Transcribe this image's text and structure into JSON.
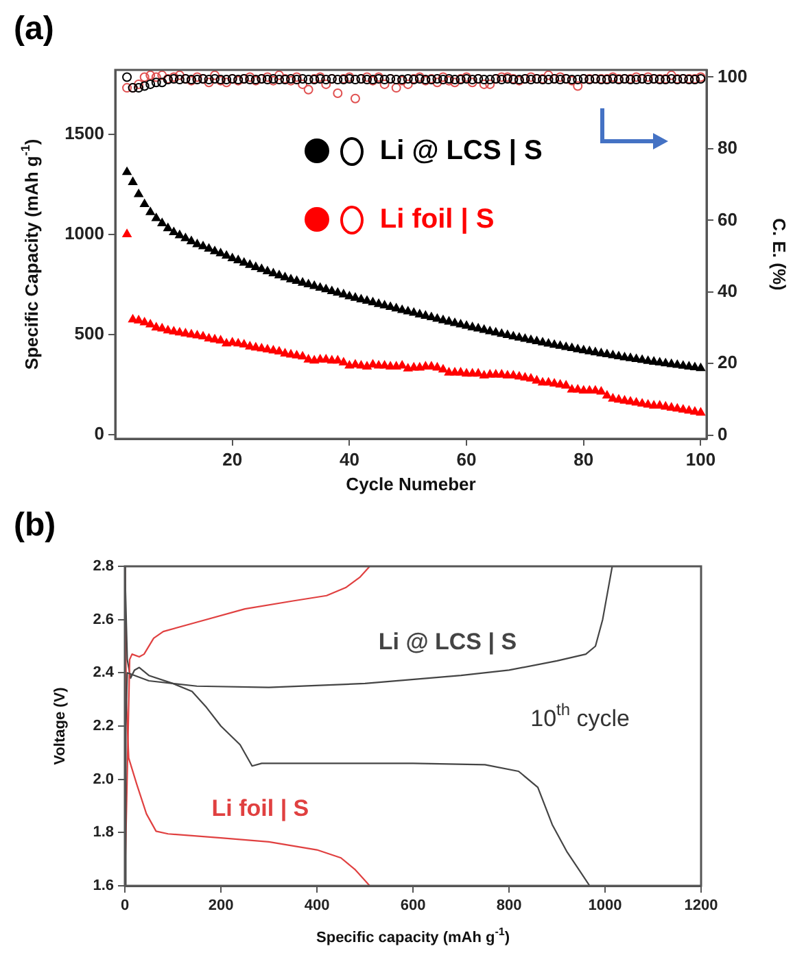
{
  "chart_data": [
    {
      "type": "scatter",
      "title": "(a)",
      "xlabel": "Cycle Numeber",
      "ylabel": "Specific Capacity (mAh g$^{-1}$)",
      "y2label": "C. E. (%)",
      "xlim": [
        0,
        101
      ],
      "xticks": [
        20,
        40,
        60,
        80,
        100
      ],
      "ylim": [
        -20,
        1820
      ],
      "yticks": [
        0,
        500,
        1000,
        1500
      ],
      "y2lim": [
        -1,
        102
      ],
      "y2ticks": [
        0,
        20,
        40,
        60,
        80,
        100
      ],
      "legend": "top right",
      "x": [
        2,
        3,
        4,
        5,
        6,
        7,
        8,
        9,
        10,
        11,
        12,
        13,
        14,
        15,
        16,
        17,
        18,
        19,
        20,
        21,
        22,
        23,
        24,
        25,
        26,
        27,
        28,
        29,
        30,
        31,
        32,
        33,
        34,
        35,
        36,
        37,
        38,
        39,
        40,
        41,
        42,
        43,
        44,
        45,
        46,
        47,
        48,
        49,
        50,
        51,
        52,
        53,
        54,
        55,
        56,
        57,
        58,
        59,
        60,
        61,
        62,
        63,
        64,
        65,
        66,
        67,
        68,
        69,
        70,
        71,
        72,
        73,
        74,
        75,
        76,
        77,
        78,
        79,
        80,
        81,
        82,
        83,
        84,
        85,
        86,
        87,
        88,
        89,
        90,
        91,
        92,
        93,
        94,
        95,
        96,
        97,
        98,
        99,
        100
      ],
      "series": [
        {
          "name": "Li @ LCS | S",
          "color": "#000000",
          "marker": "triangle",
          "values": [
            1310,
            1260,
            1200,
            1150,
            1110,
            1080,
            1055,
            1030,
            1010,
            995,
            980,
            965,
            950,
            940,
            928,
            915,
            905,
            893,
            880,
            870,
            858,
            847,
            836,
            826,
            815,
            805,
            795,
            785,
            775,
            767,
            758,
            750,
            742,
            733,
            725,
            716,
            708,
            700,
            690,
            683,
            675,
            668,
            660,
            652,
            645,
            637,
            630,
            622,
            615,
            608,
            600,
            593,
            586,
            578,
            571,
            564,
            557,
            550,
            543,
            536,
            530,
            523,
            516,
            510,
            503,
            497,
            490,
            484,
            478,
            472,
            466,
            460,
            454,
            448,
            443,
            437,
            432,
            426,
            421,
            416,
            411,
            406,
            401,
            396,
            391,
            386,
            382,
            377,
            373,
            368,
            364,
            360,
            356,
            352,
            348,
            344,
            340,
            336,
            332
          ]
        },
        {
          "name": "Li foil | S",
          "color": "#ff0000",
          "marker": "triangle",
          "values": [
            1000,
            575,
            570,
            560,
            550,
            535,
            530,
            520,
            515,
            510,
            505,
            500,
            495,
            490,
            480,
            475,
            470,
            455,
            460,
            455,
            450,
            440,
            435,
            430,
            425,
            420,
            415,
            405,
            400,
            395,
            390,
            375,
            370,
            375,
            375,
            370,
            370,
            360,
            345,
            350,
            345,
            340,
            350,
            345,
            345,
            340,
            340,
            345,
            330,
            335,
            335,
            340,
            340,
            335,
            325,
            310,
            310,
            310,
            305,
            305,
            305,
            295,
            300,
            300,
            300,
            295,
            295,
            290,
            285,
            280,
            270,
            260,
            260,
            255,
            250,
            245,
            225,
            225,
            220,
            220,
            220,
            215,
            195,
            180,
            175,
            170,
            165,
            160,
            155,
            150,
            145,
            145,
            140,
            135,
            130,
            125,
            120,
            115,
            110
          ]
        },
        {
          "color": "#000000",
          "marker": "circle",
          "axis": "y2",
          "values": [
            100,
            97,
            97,
            97.5,
            98,
            98.5,
            98.5,
            99.3,
            99.5,
            99.3,
            99.5,
            99.3,
            99.3,
            99.5,
            99.3,
            99.5,
            99.3,
            99.3,
            99.5,
            99.3,
            99.5,
            99.3,
            99.3,
            99.5,
            99.3,
            99.5,
            99.3,
            99.3,
            99.5,
            99.3,
            99.5,
            99.3,
            99.3,
            99.5,
            99.3,
            99.5,
            99.3,
            99.3,
            99.5,
            99.3,
            99.5,
            99.3,
            99.3,
            99.5,
            99.3,
            99.5,
            99.3,
            99.3,
            99.5,
            99.3,
            99.5,
            99.3,
            99.3,
            99.5,
            99.3,
            99.5,
            99.3,
            99.3,
            99.5,
            99.3,
            99.5,
            99.3,
            99.3,
            99.5,
            99.3,
            99.5,
            99.3,
            99.3,
            99.5,
            99.3,
            99.5,
            99.3,
            99.3,
            99.5,
            99.3,
            99.5,
            99.3,
            99.3,
            99.5,
            99.3,
            99.5,
            99.3,
            99.3,
            99.5,
            99.3,
            99.5,
            99.3,
            99.3,
            99.5,
            99.3,
            99.5,
            99.3,
            99.3,
            99.5,
            99.3,
            99.5,
            99.3,
            99.3,
            99.5
          ]
        },
        {
          "color": "#e05050",
          "marker": "circle",
          "axis": "y2",
          "values": [
            97,
            97,
            98,
            100,
            100.5,
            100,
            100.5,
            99.5,
            100,
            100.5,
            99.5,
            99,
            100,
            99.5,
            98.5,
            100.5,
            99,
            98.5,
            99.5,
            99,
            99.5,
            100,
            99,
            99.5,
            100,
            99,
            100.5,
            99.5,
            99,
            100,
            98,
            96.5,
            99.5,
            100,
            98,
            99.5,
            95.5,
            99.5,
            100,
            94,
            99.5,
            100,
            99,
            100,
            98,
            99.5,
            97,
            99,
            98,
            99.5,
            100,
            99,
            99.5,
            98.5,
            100,
            99,
            98.5,
            99.5,
            100,
            98.5,
            99.5,
            98,
            98,
            99.5,
            100,
            100,
            99.5,
            99,
            99.5,
            100,
            99.5,
            99.5,
            100.5,
            99.5,
            100,
            99.5,
            99,
            97.5,
            99.5,
            99.5,
            99.5,
            99.5,
            99.5,
            100,
            99.5,
            99.5,
            99.5,
            100,
            99.5,
            100,
            99.5,
            99.5,
            99.5,
            100.5,
            99.5,
            99.5,
            99.5,
            99.5,
            100
          ]
        }
      ]
    },
    {
      "type": "line",
      "title": "(b)",
      "xlabel": "Specific capacity (mAh g$^{-1}$)",
      "ylabel": "Voltage (V)",
      "xlim": [
        0,
        1200
      ],
      "xticks": [
        0,
        200,
        400,
        600,
        800,
        1000,
        1200
      ],
      "ylim": [
        1.6,
        2.8
      ],
      "yticks": [
        1.6,
        1.8,
        {
          "value": 2,
          "label": "2.0"
        },
        2.2,
        2.4,
        2.6,
        2.8
      ],
      "annotations": [
        "10$^{th}$ cycle"
      ],
      "series": [
        {
          "name": "Li @ LCS | S",
          "color": "#444444",
          "x": [
            0,
            2,
            5,
            50,
            150,
            300,
            500,
            700,
            800,
            900,
            960,
            980,
            995,
            1005,
            1015
          ],
          "values": [
            1.6,
            2.2,
            2.4,
            2.37,
            2.35,
            2.345,
            2.36,
            2.39,
            2.41,
            2.445,
            2.47,
            2.5,
            2.6,
            2.7,
            2.8
          ]
        },
        {
          "name": "Li foil | S",
          "color": "#e04040",
          "x": [
            0,
            10,
            15,
            30,
            40,
            60,
            80,
            150,
            250,
            350,
            420,
            460,
            490,
            510
          ],
          "values": [
            1.6,
            2.45,
            2.47,
            2.46,
            2.47,
            2.53,
            2.555,
            2.59,
            2.64,
            2.67,
            2.69,
            2.72,
            2.76,
            2.8
          ]
        },
        {
          "color": "#444444",
          "x": [
            0,
            5,
            12,
            20,
            30,
            50,
            100,
            140,
            170,
            200,
            240,
            265,
            285,
            400,
            600,
            750,
            820,
            860,
            890,
            920,
            968
          ],
          "values": [
            2.8,
            2.45,
            2.38,
            2.41,
            2.42,
            2.39,
            2.36,
            2.33,
            2.27,
            2.2,
            2.13,
            2.05,
            2.06,
            2.06,
            2.06,
            2.055,
            2.03,
            1.97,
            1.83,
            1.73,
            1.6
          ]
        },
        {
          "color": "#e04040",
          "x": [
            0,
            3,
            8,
            25,
            45,
            65,
            90,
            200,
            300,
            400,
            450,
            480,
            510
          ],
          "values": [
            2.8,
            2.3,
            2.08,
            1.98,
            1.87,
            1.805,
            1.795,
            1.78,
            1.765,
            1.735,
            1.705,
            1.66,
            1.6
          ]
        }
      ]
    }
  ]
}
